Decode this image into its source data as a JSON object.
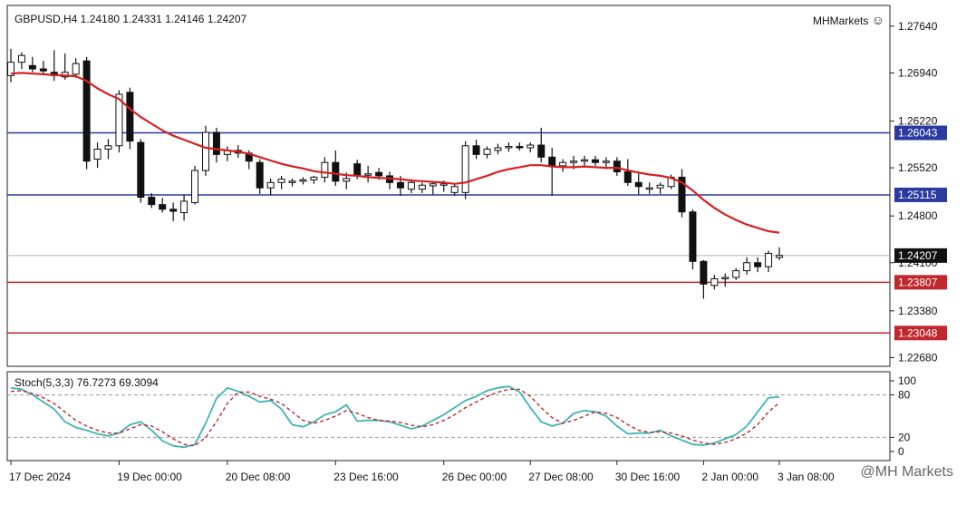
{
  "header": {
    "symbol_line": "GBPUSD,H4  1.24180 1.24331 1.24146 1.24207",
    "brand": "MHMarkets",
    "brand_icon": "smiley-icon"
  },
  "watermark": "@MH Markets",
  "price_axis": {
    "ticks": [
      "1.27640",
      "1.26940",
      "1.26220",
      "1.25520",
      "1.24800",
      "1.24100",
      "1.23380",
      "1.22680"
    ],
    "ylim": [
      1.2255,
      1.2795
    ]
  },
  "levels": [
    {
      "label": "1.26043",
      "value": 1.26043,
      "color": "#2b3a9e",
      "style": "solid"
    },
    {
      "label": "1.25115",
      "value": 1.25115,
      "color": "#2b3a9e",
      "style": "solid"
    },
    {
      "label": "1.24207",
      "value": 1.24207,
      "color": "#111111",
      "style": "current"
    },
    {
      "label": "1.23807",
      "value": 1.23807,
      "color": "#c0282d",
      "style": "solid"
    },
    {
      "label": "1.23048",
      "value": 1.23048,
      "color": "#c0282d",
      "style": "solid"
    }
  ],
  "stoch": {
    "label": "Stoch(5,3,3) 76.7273 69.3094",
    "ticks": [
      "100",
      "80",
      "20",
      "0"
    ]
  },
  "time_axis": {
    "labels": [
      "17 Dec 2024",
      "19 Dec 00:00",
      "20 Dec 08:00",
      "23 Dec 16:00",
      "26 Dec 00:00",
      "27 Dec 08:00",
      "30 Dec 16:00",
      "2 Jan 00:00",
      "3 Jan 08:00"
    ]
  },
  "chart_data": {
    "type": "candlestick",
    "symbol": "GBPUSD",
    "timeframe": "H4",
    "candles": [
      {
        "o": 1.269,
        "h": 1.273,
        "l": 1.268,
        "c": 1.271
      },
      {
        "o": 1.271,
        "h": 1.2725,
        "l": 1.27,
        "c": 1.272
      },
      {
        "o": 1.2705,
        "h": 1.2718,
        "l": 1.2695,
        "c": 1.27
      },
      {
        "o": 1.27,
        "h": 1.2712,
        "l": 1.2692,
        "c": 1.2697
      },
      {
        "o": 1.2695,
        "h": 1.2728,
        "l": 1.2682,
        "c": 1.269
      },
      {
        "o": 1.2688,
        "h": 1.2723,
        "l": 1.2684,
        "c": 1.2695
      },
      {
        "o": 1.2692,
        "h": 1.2716,
        "l": 1.2687,
        "c": 1.2708
      },
      {
        "o": 1.2712,
        "h": 1.2718,
        "l": 1.255,
        "c": 1.2562
      },
      {
        "o": 1.2565,
        "h": 1.259,
        "l": 1.2552,
        "c": 1.258
      },
      {
        "o": 1.258,
        "h": 1.2595,
        "l": 1.2565,
        "c": 1.2585
      },
      {
        "o": 1.2585,
        "h": 1.2668,
        "l": 1.2575,
        "c": 1.2662
      },
      {
        "o": 1.2665,
        "h": 1.2672,
        "l": 1.258,
        "c": 1.2592
      },
      {
        "o": 1.259,
        "h": 1.2595,
        "l": 1.25,
        "c": 1.2508
      },
      {
        "o": 1.2508,
        "h": 1.2514,
        "l": 1.2492,
        "c": 1.2497
      },
      {
        "o": 1.2497,
        "h": 1.2507,
        "l": 1.2485,
        "c": 1.249
      },
      {
        "o": 1.249,
        "h": 1.25,
        "l": 1.2472,
        "c": 1.2487
      },
      {
        "o": 1.2485,
        "h": 1.2512,
        "l": 1.2473,
        "c": 1.2502
      },
      {
        "o": 1.25,
        "h": 1.2555,
        "l": 1.2497,
        "c": 1.2548
      },
      {
        "o": 1.2548,
        "h": 1.2615,
        "l": 1.254,
        "c": 1.2605
      },
      {
        "o": 1.2605,
        "h": 1.2612,
        "l": 1.256,
        "c": 1.2572
      },
      {
        "o": 1.2572,
        "h": 1.2584,
        "l": 1.2562,
        "c": 1.2578
      },
      {
        "o": 1.2578,
        "h": 1.2586,
        "l": 1.2567,
        "c": 1.2574
      },
      {
        "o": 1.2574,
        "h": 1.2578,
        "l": 1.255,
        "c": 1.2562
      },
      {
        "o": 1.256,
        "h": 1.2565,
        "l": 1.2513,
        "c": 1.2522
      },
      {
        "o": 1.2522,
        "h": 1.2536,
        "l": 1.2511,
        "c": 1.253
      },
      {
        "o": 1.253,
        "h": 1.254,
        "l": 1.252,
        "c": 1.2535
      },
      {
        "o": 1.253,
        "h": 1.2536,
        "l": 1.2524,
        "c": 1.2532
      },
      {
        "o": 1.2532,
        "h": 1.2538,
        "l": 1.2527,
        "c": 1.2534
      },
      {
        "o": 1.2534,
        "h": 1.254,
        "l": 1.2528,
        "c": 1.2538
      },
      {
        "o": 1.2538,
        "h": 1.2568,
        "l": 1.253,
        "c": 1.256
      },
      {
        "o": 1.256,
        "h": 1.2578,
        "l": 1.2525,
        "c": 1.2532
      },
      {
        "o": 1.2532,
        "h": 1.2545,
        "l": 1.252,
        "c": 1.2536
      },
      {
        "o": 1.2558,
        "h": 1.2564,
        "l": 1.2535,
        "c": 1.254
      },
      {
        "o": 1.2542,
        "h": 1.2555,
        "l": 1.253,
        "c": 1.2543
      },
      {
        "o": 1.2545,
        "h": 1.2552,
        "l": 1.2534,
        "c": 1.254
      },
      {
        "o": 1.254,
        "h": 1.2546,
        "l": 1.252,
        "c": 1.253
      },
      {
        "o": 1.253,
        "h": 1.254,
        "l": 1.251,
        "c": 1.2522
      },
      {
        "o": 1.252,
        "h": 1.2535,
        "l": 1.2514,
        "c": 1.253
      },
      {
        "o": 1.252,
        "h": 1.253,
        "l": 1.2514,
        "c": 1.2526
      },
      {
        "o": 1.2525,
        "h": 1.2532,
        "l": 1.2512,
        "c": 1.2528
      },
      {
        "o": 1.2526,
        "h": 1.2533,
        "l": 1.2516,
        "c": 1.2528
      },
      {
        "o": 1.2515,
        "h": 1.2528,
        "l": 1.251,
        "c": 1.2524
      },
      {
        "o": 1.2515,
        "h": 1.2592,
        "l": 1.2505,
        "c": 1.2585
      },
      {
        "o": 1.2585,
        "h": 1.2594,
        "l": 1.2565,
        "c": 1.2572
      },
      {
        "o": 1.2572,
        "h": 1.2584,
        "l": 1.2566,
        "c": 1.258
      },
      {
        "o": 1.2578,
        "h": 1.2588,
        "l": 1.2572,
        "c": 1.2582
      },
      {
        "o": 1.2582,
        "h": 1.259,
        "l": 1.2576,
        "c": 1.2584
      },
      {
        "o": 1.2584,
        "h": 1.259,
        "l": 1.2578,
        "c": 1.2582
      },
      {
        "o": 1.2582,
        "h": 1.259,
        "l": 1.2575,
        "c": 1.2586
      },
      {
        "o": 1.2586,
        "h": 1.2612,
        "l": 1.256,
        "c": 1.2568
      },
      {
        "o": 1.2568,
        "h": 1.2582,
        "l": 1.251,
        "c": 1.2555
      },
      {
        "o": 1.2555,
        "h": 1.2565,
        "l": 1.2546,
        "c": 1.256
      },
      {
        "o": 1.256,
        "h": 1.257,
        "l": 1.255,
        "c": 1.2562
      },
      {
        "o": 1.2562,
        "h": 1.257,
        "l": 1.2552,
        "c": 1.2564
      },
      {
        "o": 1.2564,
        "h": 1.257,
        "l": 1.2555,
        "c": 1.256
      },
      {
        "o": 1.256,
        "h": 1.2568,
        "l": 1.255,
        "c": 1.2562
      },
      {
        "o": 1.2562,
        "h": 1.2568,
        "l": 1.254,
        "c": 1.2546
      },
      {
        "o": 1.2546,
        "h": 1.2565,
        "l": 1.2525,
        "c": 1.253
      },
      {
        "o": 1.253,
        "h": 1.2545,
        "l": 1.2512,
        "c": 1.2524
      },
      {
        "o": 1.2522,
        "h": 1.253,
        "l": 1.2513,
        "c": 1.2522
      },
      {
        "o": 1.2522,
        "h": 1.253,
        "l": 1.2513,
        "c": 1.2526
      },
      {
        "o": 1.2524,
        "h": 1.2542,
        "l": 1.252,
        "c": 1.2538
      },
      {
        "o": 1.2538,
        "h": 1.255,
        "l": 1.2478,
        "c": 1.2486
      },
      {
        "o": 1.2486,
        "h": 1.249,
        "l": 1.24,
        "c": 1.2412
      },
      {
        "o": 1.2412,
        "h": 1.2414,
        "l": 1.2356,
        "c": 1.2378
      },
      {
        "o": 1.2376,
        "h": 1.2392,
        "l": 1.237,
        "c": 1.2386
      },
      {
        "o": 1.2386,
        "h": 1.2394,
        "l": 1.2374,
        "c": 1.2388
      },
      {
        "o": 1.2388,
        "h": 1.2402,
        "l": 1.2384,
        "c": 1.2398
      },
      {
        "o": 1.2398,
        "h": 1.2418,
        "l": 1.2392,
        "c": 1.241
      },
      {
        "o": 1.241,
        "h": 1.2418,
        "l": 1.2396,
        "c": 1.2404
      },
      {
        "o": 1.2404,
        "h": 1.2428,
        "l": 1.2396,
        "c": 1.2424
      },
      {
        "o": 1.2418,
        "h": 1.2433,
        "l": 1.2414,
        "c": 1.2421
      }
    ],
    "ma": [
      1.2693,
      1.2694,
      1.2693,
      1.2692,
      1.2691,
      1.269,
      1.2689,
      1.2682,
      1.2671,
      1.2662,
      1.2655,
      1.264,
      1.2628,
      1.2618,
      1.2608,
      1.26,
      1.2594,
      1.2588,
      1.2582,
      1.258,
      1.2578,
      1.2576,
      1.2573,
      1.2568,
      1.2563,
      1.2558,
      1.2554,
      1.2551,
      1.2547,
      1.2545,
      1.2543,
      1.2541,
      1.254,
      1.2538,
      1.2537,
      1.2536,
      1.2535,
      1.2533,
      1.2532,
      1.2531,
      1.253,
      1.2528,
      1.253,
      1.2535,
      1.254,
      1.2546,
      1.255,
      1.2553,
      1.2556,
      1.2556,
      1.2554,
      1.2553,
      1.2553,
      1.2554,
      1.2553,
      1.2552,
      1.2552,
      1.2548,
      1.2545,
      1.2542,
      1.254,
      1.2537,
      1.253,
      1.2518,
      1.2504,
      1.2492,
      1.2482,
      1.2474,
      1.2467,
      1.2462,
      1.2457,
      1.2455
    ],
    "stoch_k": [
      90,
      88,
      80,
      70,
      60,
      42,
      34,
      30,
      25,
      22,
      26,
      38,
      42,
      30,
      15,
      8,
      6,
      10,
      40,
      75,
      90,
      85,
      78,
      70,
      72,
      60,
      38,
      35,
      42,
      52,
      56,
      66,
      43,
      44,
      44,
      42,
      37,
      32,
      36,
      44,
      52,
      62,
      72,
      78,
      86,
      90,
      92,
      84,
      62,
      42,
      36,
      40,
      54,
      58,
      56,
      50,
      36,
      25,
      26,
      26,
      30,
      22,
      16,
      10,
      9,
      12,
      18,
      24,
      36,
      56,
      76,
      77
    ],
    "stoch_d": [
      85,
      86,
      82,
      76,
      68,
      56,
      44,
      36,
      30,
      26,
      26,
      32,
      38,
      36,
      28,
      18,
      10,
      8,
      20,
      42,
      68,
      84,
      84,
      78,
      74,
      68,
      56,
      44,
      40,
      44,
      50,
      58,
      54,
      48,
      44,
      43,
      41,
      37,
      35,
      38,
      44,
      52,
      62,
      70,
      78,
      84,
      88,
      88,
      78,
      62,
      48,
      40,
      44,
      50,
      56,
      54,
      48,
      38,
      30,
      27,
      28,
      26,
      22,
      16,
      12,
      10,
      13,
      18,
      26,
      38,
      56,
      69
    ]
  }
}
